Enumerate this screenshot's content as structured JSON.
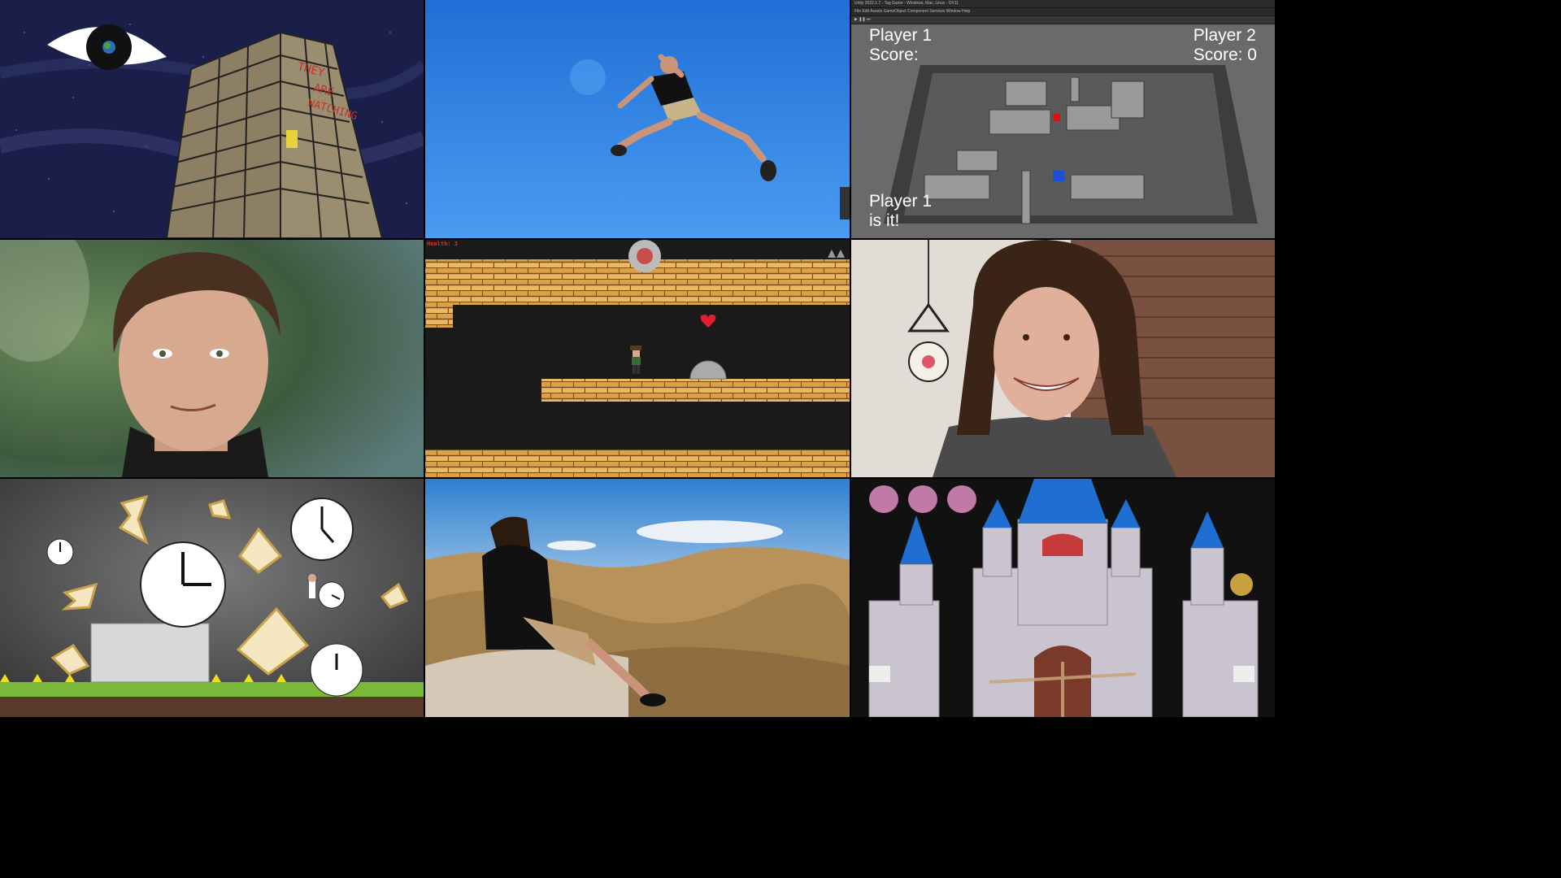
{
  "tiles": [
    {
      "name": "they-are-watching-art",
      "building_text": [
        "THEY",
        "ARE",
        "WATCHING"
      ]
    },
    {
      "name": "jumping-photo"
    },
    {
      "name": "unity-tag-game",
      "editor_title": "Unity 2022.1.7 - Tag Game - Windows, Mac, Linux - DX11",
      "editor_menu": "File  Edit  Assets  GameObject  Component  Services  Window  Help",
      "player1_name": "Player 1",
      "player1_score_label": "Score:",
      "player2_name": "Player 2",
      "player2_score_label": "Score: 0",
      "status_line1": "Player 1",
      "status_line2": "is it!"
    },
    {
      "name": "portrait-outdoor"
    },
    {
      "name": "platformer-game",
      "health_label": "Health: 3"
    },
    {
      "name": "portrait-indoor-smiling"
    },
    {
      "name": "clocks-game"
    },
    {
      "name": "hills-photo"
    },
    {
      "name": "castle-game"
    }
  ],
  "colors": {
    "night_sky": "#1a1f4a",
    "sky_blue": "#2d86e0",
    "unity_floor": "#5a5a5a",
    "brick": "#d9a24a",
    "castle_stone": "#c9c4cf",
    "castle_roof": "#1e6fd1",
    "clock_bg": "#3a3a3a",
    "desert": "#b8925a",
    "hud_text": "#ffffff",
    "health_text": "#e03020"
  },
  "icons": [
    "eye-icon",
    "heart-icon",
    "saw-blade-icon",
    "clock-icon",
    "hourglass-icon"
  ]
}
